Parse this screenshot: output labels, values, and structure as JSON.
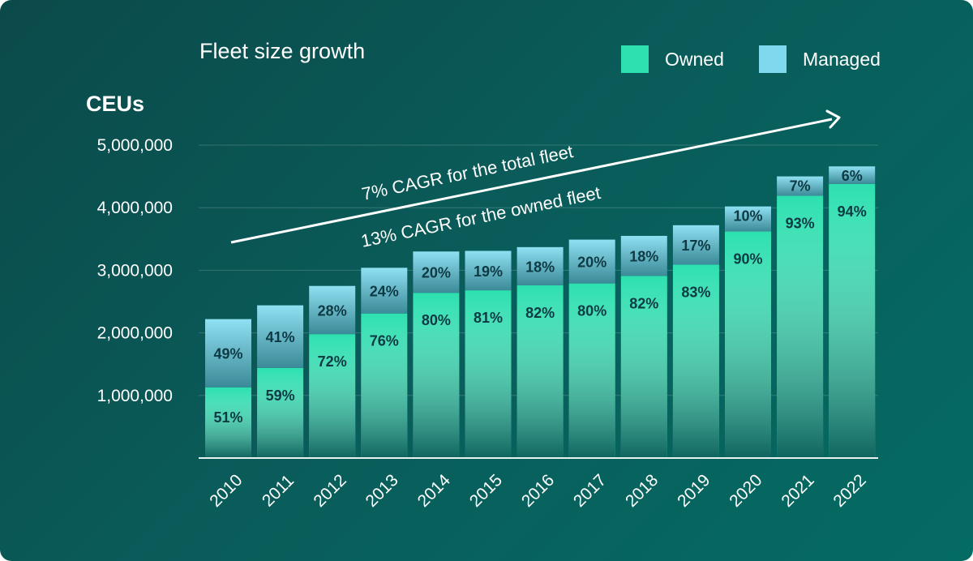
{
  "colors": {
    "owned": "#2de0b0",
    "managed": "#7fd8ee",
    "background": "#0a5755",
    "text": "#ffffff",
    "bar_label": "#0e3a44"
  },
  "legend": {
    "owned_label": "Owned",
    "managed_label": "Managed"
  },
  "chart_data": {
    "type": "bar",
    "stacked": true,
    "title": "Fleet size growth",
    "ylabel": "CEUs",
    "xlabel": "",
    "ylim": [
      0,
      5000000
    ],
    "yticks": [
      1000000,
      2000000,
      3000000,
      4000000,
      5000000
    ],
    "ytick_labels": [
      "1,000,000",
      "2,000,000",
      "3,000,000",
      "4,000,000",
      "5,000,000"
    ],
    "grid": true,
    "legend_position": "top-right",
    "categories": [
      "2010",
      "2011",
      "2012",
      "2013",
      "2014",
      "2015",
      "2016",
      "2017",
      "2018",
      "2019",
      "2020",
      "2021",
      "2022"
    ],
    "totals": [
      2220000,
      2440000,
      2750000,
      3040000,
      3300000,
      3310000,
      3370000,
      3490000,
      3550000,
      3720000,
      4020000,
      4500000,
      4660000
    ],
    "series": [
      {
        "name": "Owned",
        "values": [
          1130000,
          1440000,
          1980000,
          2310000,
          2640000,
          2680000,
          2760000,
          2790000,
          2910000,
          3090000,
          3620000,
          4190000,
          4380000
        ],
        "percent_labels": [
          "51%",
          "59%",
          "72%",
          "76%",
          "80%",
          "81%",
          "82%",
          "80%",
          "82%",
          "83%",
          "90%",
          "93%",
          "94%"
        ]
      },
      {
        "name": "Managed",
        "values": [
          1090000,
          1000000,
          770000,
          730000,
          660000,
          630000,
          610000,
          700000,
          640000,
          630000,
          400000,
          310000,
          280000
        ],
        "percent_labels": [
          "49%",
          "41%",
          "28%",
          "24%",
          "20%",
          "19%",
          "18%",
          "20%",
          "18%",
          "17%",
          "10%",
          "7%",
          "6%"
        ]
      }
    ],
    "annotations": [
      "7% CAGR for the total fleet",
      "13% CAGR for the owned fleet"
    ]
  }
}
